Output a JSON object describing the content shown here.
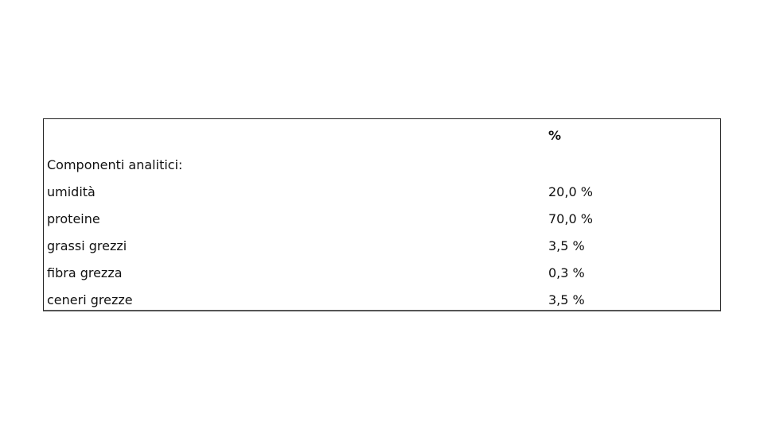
{
  "table": {
    "header": [
      "",
      "%"
    ],
    "rows": [
      [
        "Componenti analitici:",
        ""
      ],
      [
        "umidità",
        "20,0 %"
      ],
      [
        "proteine",
        "70,0 %"
      ],
      [
        "grassi grezzi",
        "3,5 %"
      ],
      [
        "fibra grezza",
        "0,3 %"
      ],
      [
        "ceneri grezze",
        "3,5 %"
      ]
    ]
  }
}
